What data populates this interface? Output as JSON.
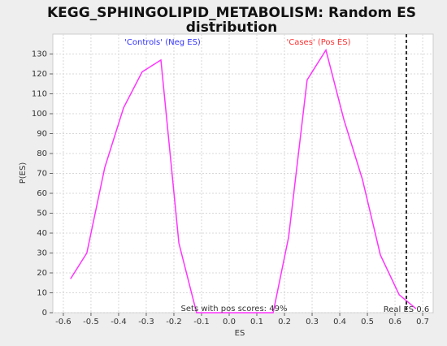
{
  "chart_data": {
    "type": "line",
    "title": "KEGG_SPHINGOLIPID_METABOLISM: Random ES",
    "title_line2": "distribution",
    "x_label": "ES",
    "y_label": "P(ES)",
    "x": [
      -0.574,
      -0.515,
      -0.45,
      -0.382,
      -0.315,
      -0.247,
      -0.182,
      -0.118,
      -0.05,
      0.02,
      0.09,
      0.159,
      0.215,
      0.282,
      0.35,
      0.415,
      0.482,
      0.547,
      0.615,
      0.676
    ],
    "series": [
      {
        "name": "P(ES)",
        "color": "#ff33ff",
        "values": [
          17,
          30,
          73,
          103,
          121,
          127,
          35,
          0,
          0,
          0,
          0,
          0,
          38,
          117,
          132,
          97,
          67,
          29,
          9,
          2
        ]
      }
    ],
    "xlim": [
      -0.638,
      0.738
    ],
    "ylim": [
      0,
      140
    ],
    "xticks": [
      -0.6,
      -0.5,
      -0.4,
      -0.3,
      -0.2,
      -0.1,
      {
        "value": 0,
        "label": "0.0"
      },
      0.1,
      0.2,
      0.3,
      0.4,
      0.5,
      0.6,
      0.7
    ],
    "yticks": [
      0,
      10,
      20,
      30,
      40,
      50,
      60,
      70,
      80,
      90,
      100,
      110,
      120,
      130
    ],
    "grid": true,
    "real_es": 0.641,
    "annotations": [
      {
        "text": "'Controls' (Neg ES)",
        "color": "#3333ff"
      },
      {
        "text": "'Cases' (Pos ES)",
        "color": "#ff3333"
      },
      {
        "text": "Sets with pos scores: 49%",
        "color": "#333333"
      },
      {
        "text": "Real ES 0.6",
        "color": "#333333"
      }
    ]
  }
}
